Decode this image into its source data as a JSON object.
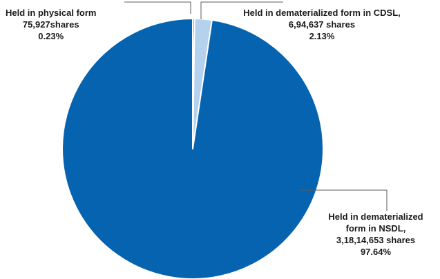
{
  "chart_data": {
    "type": "pie",
    "categories": [
      "Held in physical form",
      "Held in dematerialized form in CDSL",
      "Held in dematerialized form in NSDL"
    ],
    "values": [
      0.23,
      2.13,
      97.64
    ],
    "colors": [
      "#0563b0",
      "#b4d1ee",
      "#0563b0"
    ],
    "slice_border_color": "#ffffff",
    "leader_line_color": "#5a5a5a",
    "labels": [
      {
        "line1": "Held in physical form",
        "line2": "75,927shares",
        "line3": "0.23%"
      },
      {
        "line1": "Held in dematerialized form in CDSL,",
        "line2": "6,94,637 shares",
        "line3": "2.13%"
      },
      {
        "line1": "Held in dematerialized",
        "line2": "form in NSDL,",
        "line3": "3,18,14,653 shares",
        "line4": "97.64%"
      }
    ]
  }
}
